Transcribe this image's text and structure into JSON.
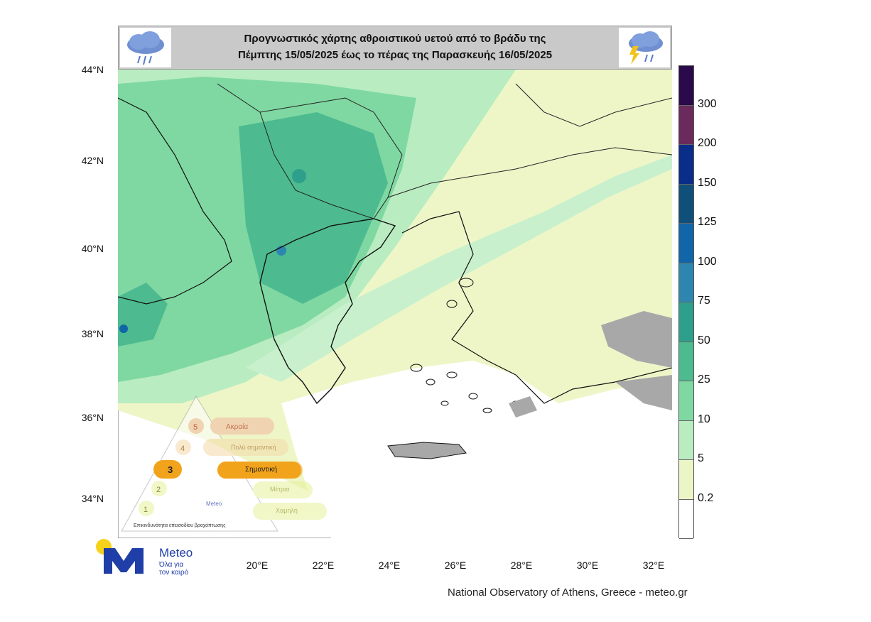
{
  "title": {
    "line1": "Προγνωστικός χάρτης αθροιστικού υετού από το βράδυ της",
    "line2": "Πέμπτης 15/05/2025 έως το πέρας της Παρασκευής 16/05/2025",
    "left_icon": "rain-cloud-icon",
    "right_icon": "thunderstorm-cloud-icon"
  },
  "axes": {
    "lat_ticks": [
      "44°N",
      "42°N",
      "40°N",
      "38°N",
      "36°N",
      "34°N"
    ],
    "lon_ticks": [
      "20°E",
      "22°E",
      "24°E",
      "26°E",
      "28°E",
      "30°E",
      "32°E"
    ]
  },
  "legend": {
    "labels": [
      "300",
      "200",
      "150",
      "125",
      "100",
      "75",
      "50",
      "25",
      "10",
      "5",
      "0.2"
    ],
    "colors": [
      "#2a0a4a",
      "#6b2a5c",
      "#0b2d8a",
      "#0f4f7a",
      "#1066a8",
      "#2e86b0",
      "#2e9f8a",
      "#4dbb8f",
      "#7fd8a2",
      "#b9ecc1",
      "#ecf5c6",
      "#ffffff"
    ]
  },
  "warning_scale": {
    "levels": [
      "5",
      "4",
      "3",
      "2",
      "1"
    ],
    "labels": [
      "Ακραία",
      "Πολύ σημαντική",
      "Σημαντική",
      "Μέτρια",
      "Χαμηλή"
    ],
    "active_level": "3",
    "caption": "Επικινδυνότητα επεισοδίου βροχόπτωσης",
    "brand": "Meteo"
  },
  "logo": {
    "name": "Meteo",
    "tagline_1": "Όλα για",
    "tagline_2": "τον καιρό"
  },
  "credit": "National Observatory of Athens, Greece - meteo.gr"
}
